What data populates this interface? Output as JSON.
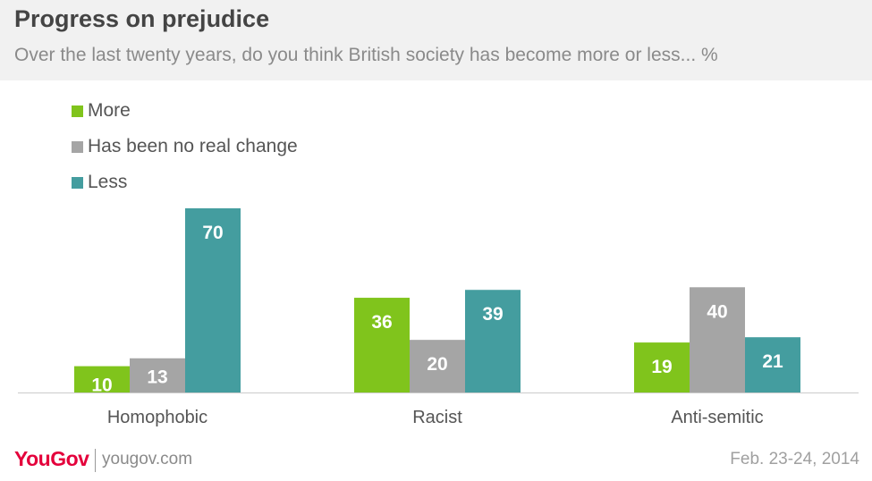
{
  "header": {
    "title": "Progress on prejudice",
    "subtitle": "Over the last twenty years, do you think British society has become more or less... %"
  },
  "footer": {
    "logo": "YouGov",
    "url": "yougov.com",
    "date": "Feb. 23-24, 2014"
  },
  "colors": {
    "more": "#80c41c",
    "no_change": "#a5a5a5",
    "less": "#449d9f"
  },
  "chart_data": {
    "type": "bar",
    "title": "Progress on prejudice",
    "subtitle": "Over the last twenty years, do you think British society has become more or less... %",
    "categories": [
      "Homophobic",
      "Racist",
      "Anti-semitic"
    ],
    "series": [
      {
        "name": "More",
        "values": [
          10,
          36,
          19
        ]
      },
      {
        "name": "Has been no real change",
        "values": [
          13,
          20,
          40
        ]
      },
      {
        "name": "Less",
        "values": [
          70,
          39,
          21
        ]
      }
    ],
    "ylim": [
      0,
      70
    ],
    "legend": "top-left",
    "grid": false
  }
}
